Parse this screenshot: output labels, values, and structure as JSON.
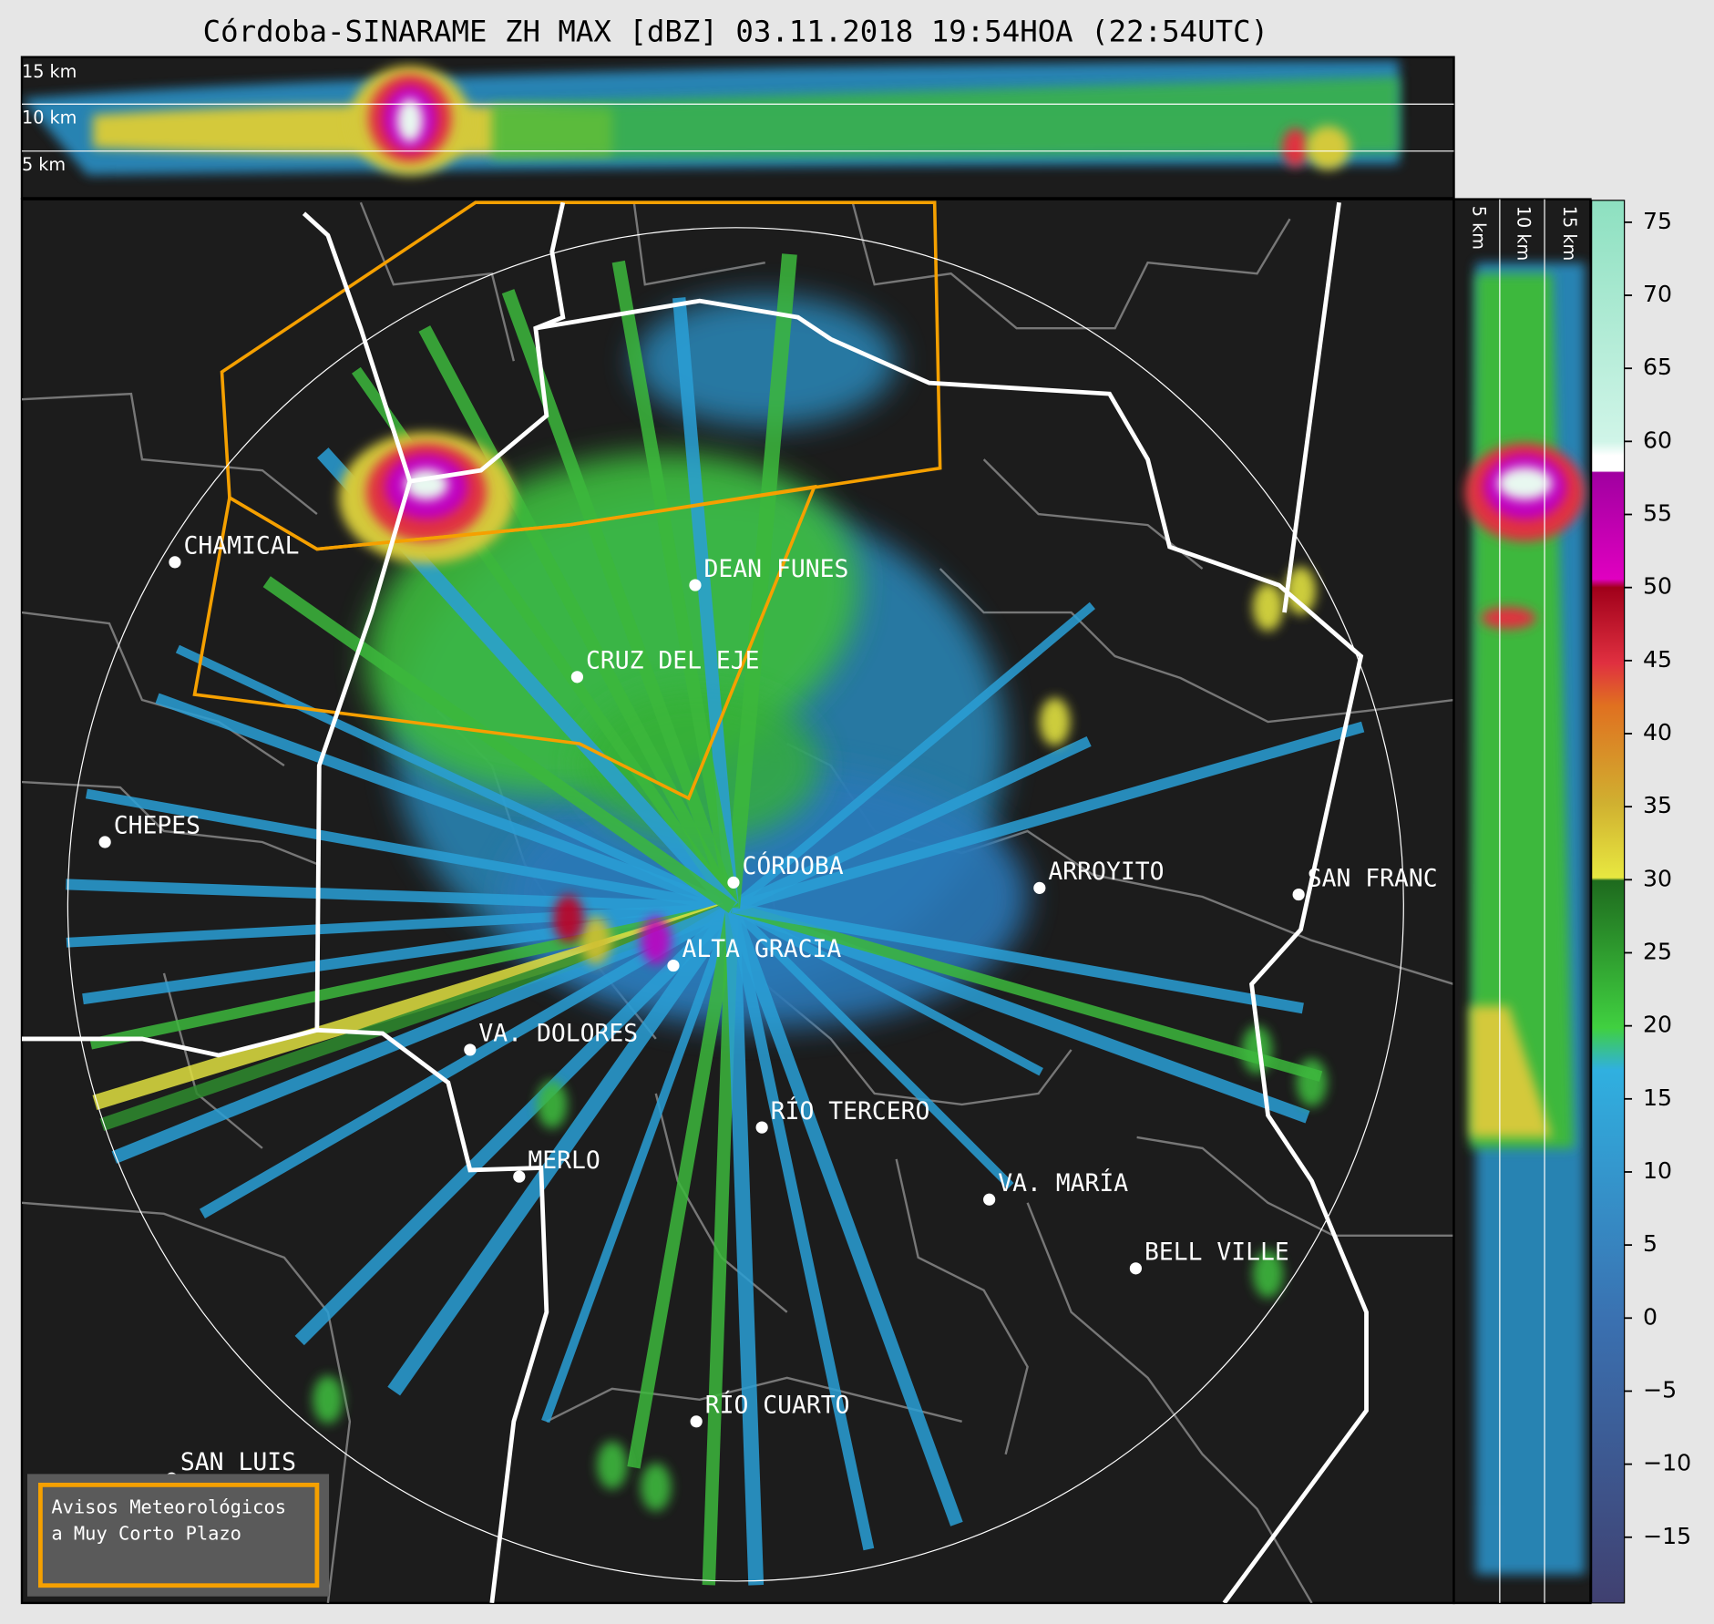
{
  "title": "Córdoba-SINARAME ZH MAX [dBZ] 03.11.2018 19:54HOA (22:54UTC)",
  "top_section": {
    "height_labels": [
      "15 km",
      "10 km",
      "5 km"
    ]
  },
  "right_section": {
    "height_labels": [
      "5 km",
      "10 km",
      "15 km"
    ]
  },
  "cities": [
    "CHAMICAL",
    "DEAN FUNES",
    "CRUZ DEL EJE",
    "CHEPES",
    "CÓRDOBA",
    "ARROYITO",
    "SAN FRANC",
    "ALTA GRACIA",
    "VA. DOLORES",
    "RÍO TERCERO",
    "MERLO",
    "VA. MARÍA",
    "BELL VILLE",
    "RÍO CUARTO",
    "SAN LUIS"
  ],
  "colorbar": {
    "lim": [
      -19.5,
      76.5
    ],
    "ticks": [
      {
        "value": -15,
        "label": "−15"
      },
      {
        "value": -10,
        "label": "−10"
      },
      {
        "value": -5,
        "label": "−5"
      },
      0,
      5,
      10,
      15,
      20,
      25,
      30,
      35,
      40,
      45,
      50,
      55,
      60,
      65,
      70,
      75
    ]
  },
  "warning_box": {
    "lines": [
      "Avisos Meteorológicos",
      "a Muy Corto Plazo"
    ]
  }
}
